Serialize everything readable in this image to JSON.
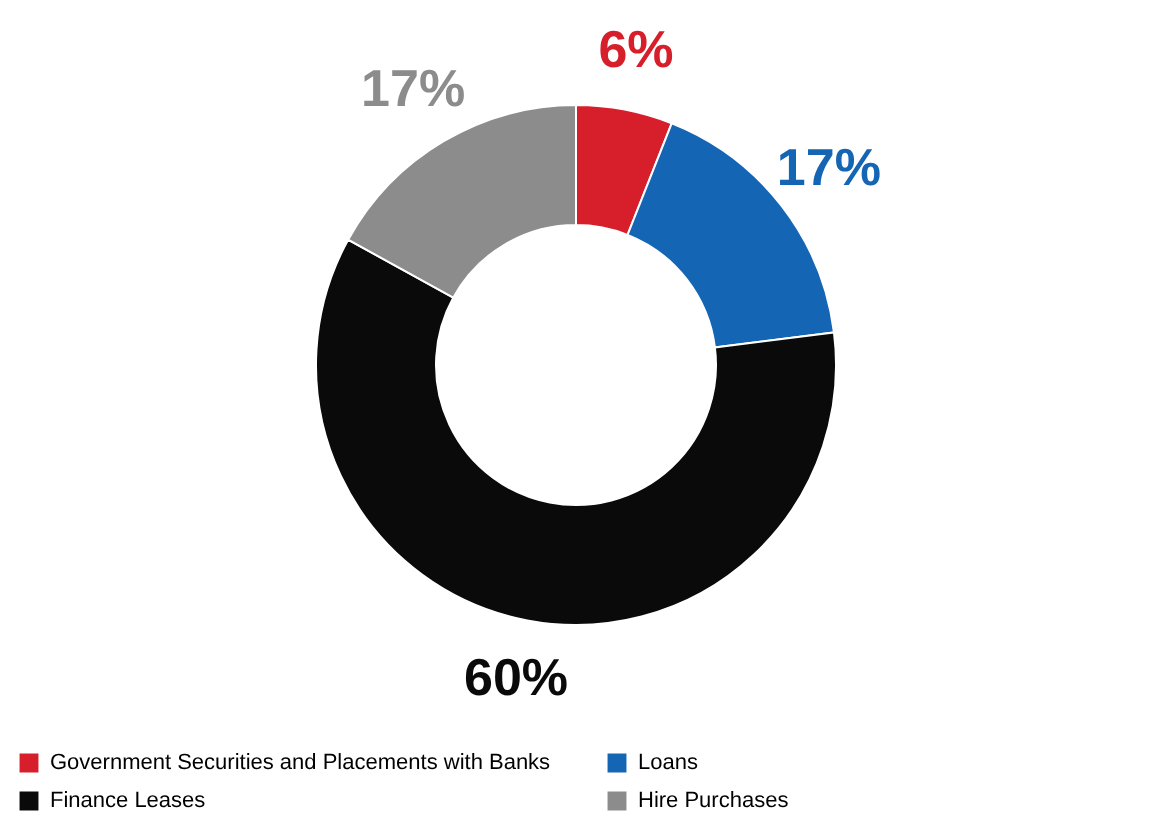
{
  "chart_data": {
    "type": "donut",
    "categories": [
      "Government Securities and Placements with Banks",
      "Loans",
      "Finance Leases",
      "Hire Purchases"
    ],
    "values": [
      6,
      17,
      60,
      17
    ],
    "colors": [
      "#d71f2b",
      "#1565b5",
      "#0a0a0a",
      "#8c8c8c"
    ],
    "value_labels": [
      "6%",
      "17%",
      "60%",
      "17%"
    ],
    "legend": "bottom"
  }
}
